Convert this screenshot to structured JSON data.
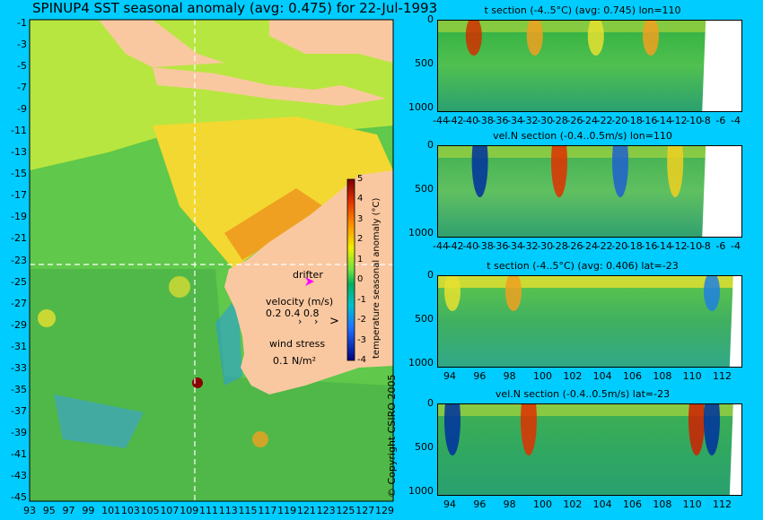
{
  "map": {
    "title": "SPINUP4 SST seasonal anomaly (avg: 0.475) for 22-Jul-1993",
    "lat_ticks": [
      "-1",
      "-3",
      "-5",
      "-7",
      "-9",
      "-11",
      "-13",
      "-15",
      "-17",
      "-19",
      "-21",
      "-23",
      "-25",
      "-27",
      "-29",
      "-31",
      "-33",
      "-35",
      "-37",
      "-39",
      "-41",
      "-43",
      "-45"
    ],
    "lon_ticks": [
      "93",
      "95",
      "97",
      "99",
      "101",
      "103",
      "105",
      "107",
      "109",
      "111",
      "113",
      "115",
      "117",
      "119",
      "121",
      "123",
      "125",
      "127",
      "129"
    ],
    "colorbar": {
      "label": "temperature seasonal anomaly (°C)",
      "ticks": [
        "5",
        "4",
        "3",
        "2",
        "1",
        "0",
        "-1",
        "-2",
        "-3",
        "-4"
      ]
    },
    "legend": {
      "drifter": "drifter",
      "velocity_title": "velocity (m/s)",
      "velocity_scale": "0.2 0.4 0.8",
      "wind_title": "wind stress",
      "wind_scale": "0.1 N/m²"
    },
    "copyright": "© Copyright CSIRO 2005"
  },
  "sections": [
    {
      "title": "t section (-4..5°C) (avg: 0.745) lon=110",
      "y_ticks": [
        "0",
        "500",
        "1000"
      ],
      "x_ticks": [
        "-44",
        "-42",
        "-40",
        "-38",
        "-36",
        "-34",
        "-32",
        "-30",
        "-28",
        "-26",
        "-24",
        "-22",
        "-20",
        "-18",
        "-16",
        "-14",
        "-12",
        "-10",
        "-8",
        "-6",
        "-4"
      ]
    },
    {
      "title": "vel.N section (-0.4..0.5m/s) lon=110",
      "y_ticks": [
        "0",
        "500",
        "1000"
      ],
      "x_ticks": [
        "-44",
        "-42",
        "-40",
        "-38",
        "-36",
        "-34",
        "-32",
        "-30",
        "-28",
        "-26",
        "-24",
        "-22",
        "-20",
        "-18",
        "-16",
        "-14",
        "-12",
        "-10",
        "-8",
        "-6",
        "-4"
      ]
    },
    {
      "title": "t section (-4..5°C) (avg: 0.406) lat=-23",
      "y_ticks": [
        "0",
        "500",
        "1000"
      ],
      "x_ticks": [
        "94",
        "96",
        "98",
        "100",
        "102",
        "104",
        "106",
        "108",
        "110",
        "112"
      ]
    },
    {
      "title": "vel.N section (-0.4..0.5m/s) lat=-23",
      "y_ticks": [
        "0",
        "500",
        "1000"
      ],
      "x_ticks": [
        "94",
        "96",
        "98",
        "100",
        "102",
        "104",
        "106",
        "108",
        "110",
        "112"
      ]
    }
  ],
  "chart_data": [
    {
      "type": "heatmap",
      "title": "SPINUP4 SST seasonal anomaly (avg: 0.475) for 22-Jul-1993",
      "xlabel": "",
      "ylabel": "",
      "xlim": [
        93,
        130
      ],
      "ylim": [
        -45,
        0
      ],
      "colorbar_range": [
        -4,
        5
      ],
      "colorbar_label": "temperature seasonal anomaly (°C)",
      "crosshair": {
        "lon": 110,
        "lat": -23
      }
    },
    {
      "type": "heatmap",
      "title": "t section (-4..5°C) (avg: 0.745) lon=110",
      "xlim": [
        -45,
        -3
      ],
      "ylim": [
        1050,
        0
      ],
      "xlabel": "",
      "ylabel": ""
    },
    {
      "type": "heatmap",
      "title": "vel.N section (-0.4..0.5m/s) lon=110",
      "xlim": [
        -45,
        -3
      ],
      "ylim": [
        1050,
        0
      ],
      "xlabel": "",
      "ylabel": ""
    },
    {
      "type": "heatmap",
      "title": "t section (-4..5°C) (avg: 0.406) lat=-23",
      "xlim": [
        93,
        114
      ],
      "ylim": [
        1050,
        0
      ],
      "xlabel": "",
      "ylabel": ""
    },
    {
      "type": "heatmap",
      "title": "vel.N section (-0.4..0.5m/s) lat=-23",
      "xlim": [
        93,
        114
      ],
      "ylim": [
        1050,
        0
      ],
      "xlabel": "",
      "ylabel": ""
    }
  ]
}
